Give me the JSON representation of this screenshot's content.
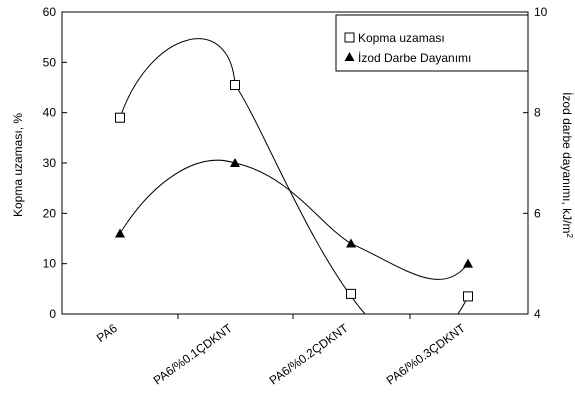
{
  "chart_data": {
    "type": "scatter",
    "categories": [
      "PA6",
      "PA6/%0.1ÇDKNT",
      "PA6/%0.2ÇDKNT",
      "PA6/%0.3ÇDKNT"
    ],
    "y_left": {
      "label": "Kopma uzaması, %",
      "lim": [
        0,
        60
      ],
      "ticks": [
        "0",
        "10",
        "20",
        "30",
        "40",
        "50",
        "60"
      ]
    },
    "y_right": {
      "label_main": "İzod darbe dayanımı, kJ/m",
      "label_sup": "2",
      "lim": [
        4,
        10
      ],
      "ticks": [
        "4",
        "6",
        "8",
        "10"
      ]
    },
    "series": [
      {
        "name": "Kopma uzaması",
        "axis": "left",
        "marker": "open-square",
        "values": [
          39,
          45.5,
          4,
          3.5
        ]
      },
      {
        "name": "İzod Darbe Dayanımı",
        "axis": "right",
        "marker": "filled-triangle",
        "values": [
          5.6,
          7.0,
          5.4,
          5.0
        ]
      }
    ],
    "legend_position": "top-right",
    "grid": false,
    "colors": {
      "line": "#000000",
      "background": "#ffffff"
    }
  }
}
